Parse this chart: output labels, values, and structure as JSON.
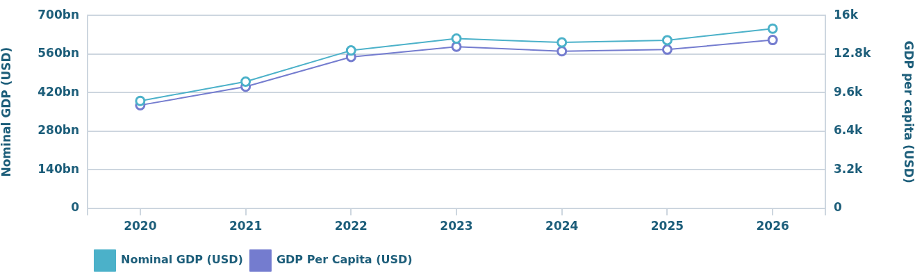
{
  "chart_data": {
    "type": "line",
    "categories": [
      "2020",
      "2021",
      "2022",
      "2023",
      "2024",
      "2025",
      "2026"
    ],
    "series": [
      {
        "name": "Nominal GDP (USD)",
        "color": "#4bb1c9",
        "values": [
          390,
          460,
          573,
          616,
          602,
          610,
          652
        ]
      },
      {
        "name": "GDP Per Capita (USD)",
        "color": "#747ccf",
        "axis": "y2",
        "values": [
          8560,
          10090,
          12560,
          13410,
          13030,
          13170,
          13960
        ]
      }
    ],
    "ylabel": "Nominal GDP (USD)",
    "y2label": "GDP per capita (USD)",
    "ylim": [
      0,
      700
    ],
    "yticks": [
      0,
      {
        "value": 140,
        "label": "140bn"
      },
      {
        "value": 280,
        "label": "280bn"
      },
      {
        "value": 420,
        "label": "420bn"
      },
      {
        "value": 560,
        "label": "560bn"
      },
      {
        "value": 700,
        "label": "700bn"
      }
    ],
    "y2lim": [
      0,
      16000
    ],
    "y2ticks": [
      0,
      {
        "value": 3200,
        "label": "3.2k"
      },
      {
        "value": 6400,
        "label": "6.4k"
      },
      {
        "value": 9600,
        "label": "9.6k"
      },
      {
        "value": 12800,
        "label": "12.8k"
      },
      {
        "value": 16000,
        "label": "16k"
      }
    ],
    "grid": "y",
    "legend": "bottom left",
    "marker": "circle",
    "line_style": "solid"
  }
}
